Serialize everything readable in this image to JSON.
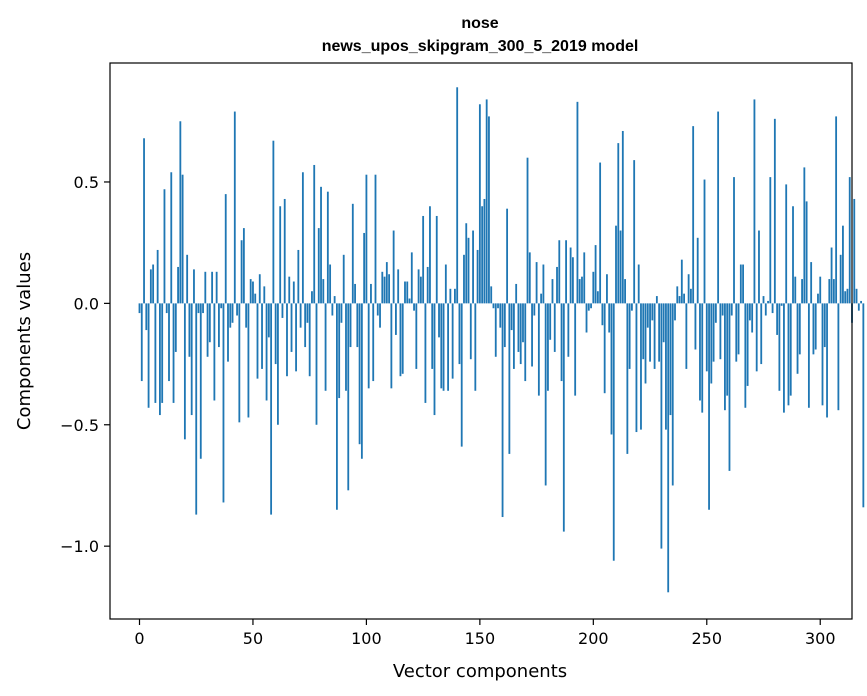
{
  "chart_data": {
    "type": "bar",
    "title": "nose",
    "subtitle": "news_upos_skipgram_300_5_2019 model",
    "xlabel": "Vector components",
    "ylabel": "Components values",
    "xlim": [
      -13,
      314
    ],
    "ylim": [
      -1.3,
      0.99
    ],
    "x_ticks": [
      0,
      50,
      100,
      150,
      200,
      250,
      300
    ],
    "x_tick_labels": [
      "0",
      "50",
      "100",
      "150",
      "200",
      "250",
      "300"
    ],
    "y_ticks": [
      -1.0,
      -0.5,
      0.0,
      0.5
    ],
    "y_tick_labels": [
      "−1.0",
      "−0.5",
      "0.0",
      "0.5"
    ],
    "bar_color": "#1f77b4",
    "grid": false,
    "legend": "none",
    "values": [
      -0.04,
      -0.32,
      0.68,
      -0.11,
      -0.43,
      0.14,
      0.16,
      -0.41,
      0.22,
      -0.46,
      -0.41,
      0.47,
      -0.04,
      -0.32,
      0.54,
      -0.41,
      -0.2,
      0.15,
      0.75,
      0.53,
      -0.56,
      0.2,
      -0.22,
      -0.46,
      0.14,
      -0.87,
      -0.04,
      -0.64,
      -0.04,
      0.13,
      -0.22,
      -0.16,
      0.13,
      -0.4,
      0.13,
      -0.18,
      -0.02,
      -0.82,
      0.45,
      -0.24,
      -0.1,
      -0.08,
      0.79,
      -0.05,
      -0.49,
      0.26,
      0.31,
      -0.1,
      -0.47,
      0.1,
      0.09,
      0.04,
      -0.31,
      0.12,
      -0.27,
      0.07,
      -0.4,
      -0.14,
      -0.87,
      0.67,
      -0.25,
      -0.5,
      0.4,
      -0.06,
      0.43,
      -0.3,
      0.11,
      -0.2,
      0.09,
      -0.28,
      0.22,
      -0.1,
      0.54,
      -0.18,
      -0.08,
      -0.3,
      0.05,
      0.57,
      -0.5,
      0.31,
      0.48,
      0.1,
      -0.36,
      0.46,
      0.16,
      -0.05,
      0.03,
      -0.85,
      -0.39,
      -0.08,
      0.2,
      -0.36,
      -0.77,
      -0.18,
      0.41,
      0.08,
      -0.18,
      -0.58,
      -0.64,
      0.29,
      0.53,
      -0.35,
      0.08,
      -0.32,
      0.53,
      -0.05,
      -0.1,
      0.13,
      0.11,
      0.17,
      0.12,
      -0.35,
      0.3,
      -0.13,
      0.14,
      -0.3,
      -0.29,
      0.09,
      0.09,
      0.02,
      0.21,
      -0.03,
      -0.27,
      0.14,
      0.11,
      0.36,
      -0.41,
      0.15,
      0.4,
      -0.27,
      -0.46,
      0.36,
      -0.14,
      -0.35,
      -0.36,
      0.16,
      -0.36,
      0.06,
      -0.31,
      0.06,
      0.89,
      -0.25,
      -0.59,
      0.2,
      0.33,
      0.27,
      -0.23,
      0.3,
      -0.36,
      0.22,
      0.82,
      0.4,
      0.43,
      0.84,
      0.77,
      0.07,
      -0.02,
      -0.22,
      -0.02,
      -0.1,
      -0.88,
      -0.18,
      0.39,
      -0.62,
      -0.11,
      -0.27,
      0.08,
      -0.2,
      -0.25,
      -0.16,
      -0.32,
      0.6,
      0.21,
      -0.26,
      -0.05,
      0.17,
      -0.38,
      0.04,
      0.16,
      -0.75,
      -0.36,
      -0.15,
      0.1,
      -0.2,
      0.15,
      0.26,
      -0.32,
      -0.94,
      0.26,
      -0.22,
      0.23,
      0.19,
      -0.38,
      0.83,
      0.1,
      0.11,
      0.21,
      -0.12,
      -0.03,
      -0.02,
      0.13,
      0.24,
      0.05,
      0.58,
      -0.09,
      -0.37,
      0.12,
      -0.12,
      -0.54,
      -1.06,
      0.32,
      0.66,
      0.3,
      0.71,
      0.1,
      -0.62,
      -0.27,
      -0.03,
      0.59,
      -0.53,
      0.16,
      -0.52,
      -0.23,
      -0.33,
      -0.1,
      -0.24,
      -0.07,
      -0.27,
      0.03,
      -0.24,
      -1.01,
      -0.16,
      -0.52,
      -1.19,
      -0.46,
      -0.75,
      -0.07,
      0.07,
      0.03,
      0.18,
      0.04,
      -0.27,
      0.12,
      0.06,
      0.73,
      -0.19,
      0.27,
      -0.4,
      -0.45,
      0.51,
      -0.28,
      -0.85,
      -0.33,
      -0.24,
      -0.08,
      0.79,
      -0.23,
      -0.05,
      -0.44,
      -0.38,
      -0.69,
      -0.05,
      0.52,
      -0.24,
      -0.21,
      0.16,
      0.16,
      -0.43,
      -0.34,
      -0.07,
      -0.12,
      0.84,
      -0.28,
      0.3,
      -0.25,
      0.03,
      -0.05,
      0.01,
      0.52,
      -0.04,
      0.76,
      -0.13,
      -0.36,
      -0.01,
      -0.45,
      0.49,
      -0.42,
      -0.38,
      0.4,
      0.11,
      -0.29,
      -0.21,
      0.1,
      0.56,
      0.42,
      -0.43,
      0.17,
      -0.21,
      -0.19,
      0.04,
      0.11,
      -0.42,
      -0.18,
      -0.47,
      0.1,
      0.23,
      0.1,
      0.77,
      -0.44,
      0.2,
      0.32,
      0.05,
      0.06,
      0.52,
      -0.08,
      0.43,
      0.06,
      -0.03,
      0.01,
      -0.84
    ]
  }
}
